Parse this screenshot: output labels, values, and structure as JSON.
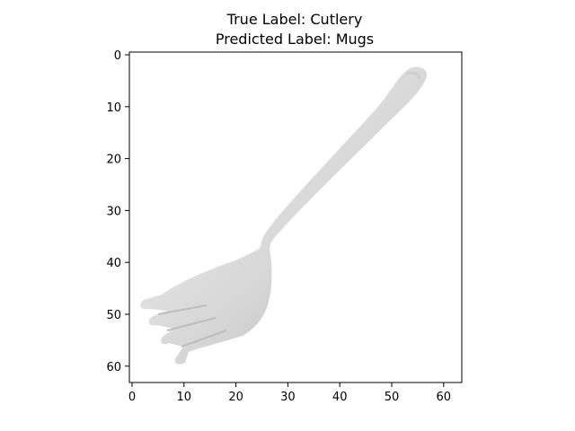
{
  "title": {
    "true_label": "True Label: Cutlery",
    "predicted_label": "Predicted Label: Mugs"
  },
  "image": {
    "subject": "fork",
    "description_icon": "fork-icon",
    "background_color": "#ffffff",
    "fork_color": "#dcdcdc"
  },
  "axes": {
    "x_ticks": [
      "0",
      "10",
      "20",
      "30",
      "40",
      "50",
      "60"
    ],
    "y_ticks": [
      "0",
      "10",
      "20",
      "30",
      "40",
      "50",
      "60"
    ]
  }
}
